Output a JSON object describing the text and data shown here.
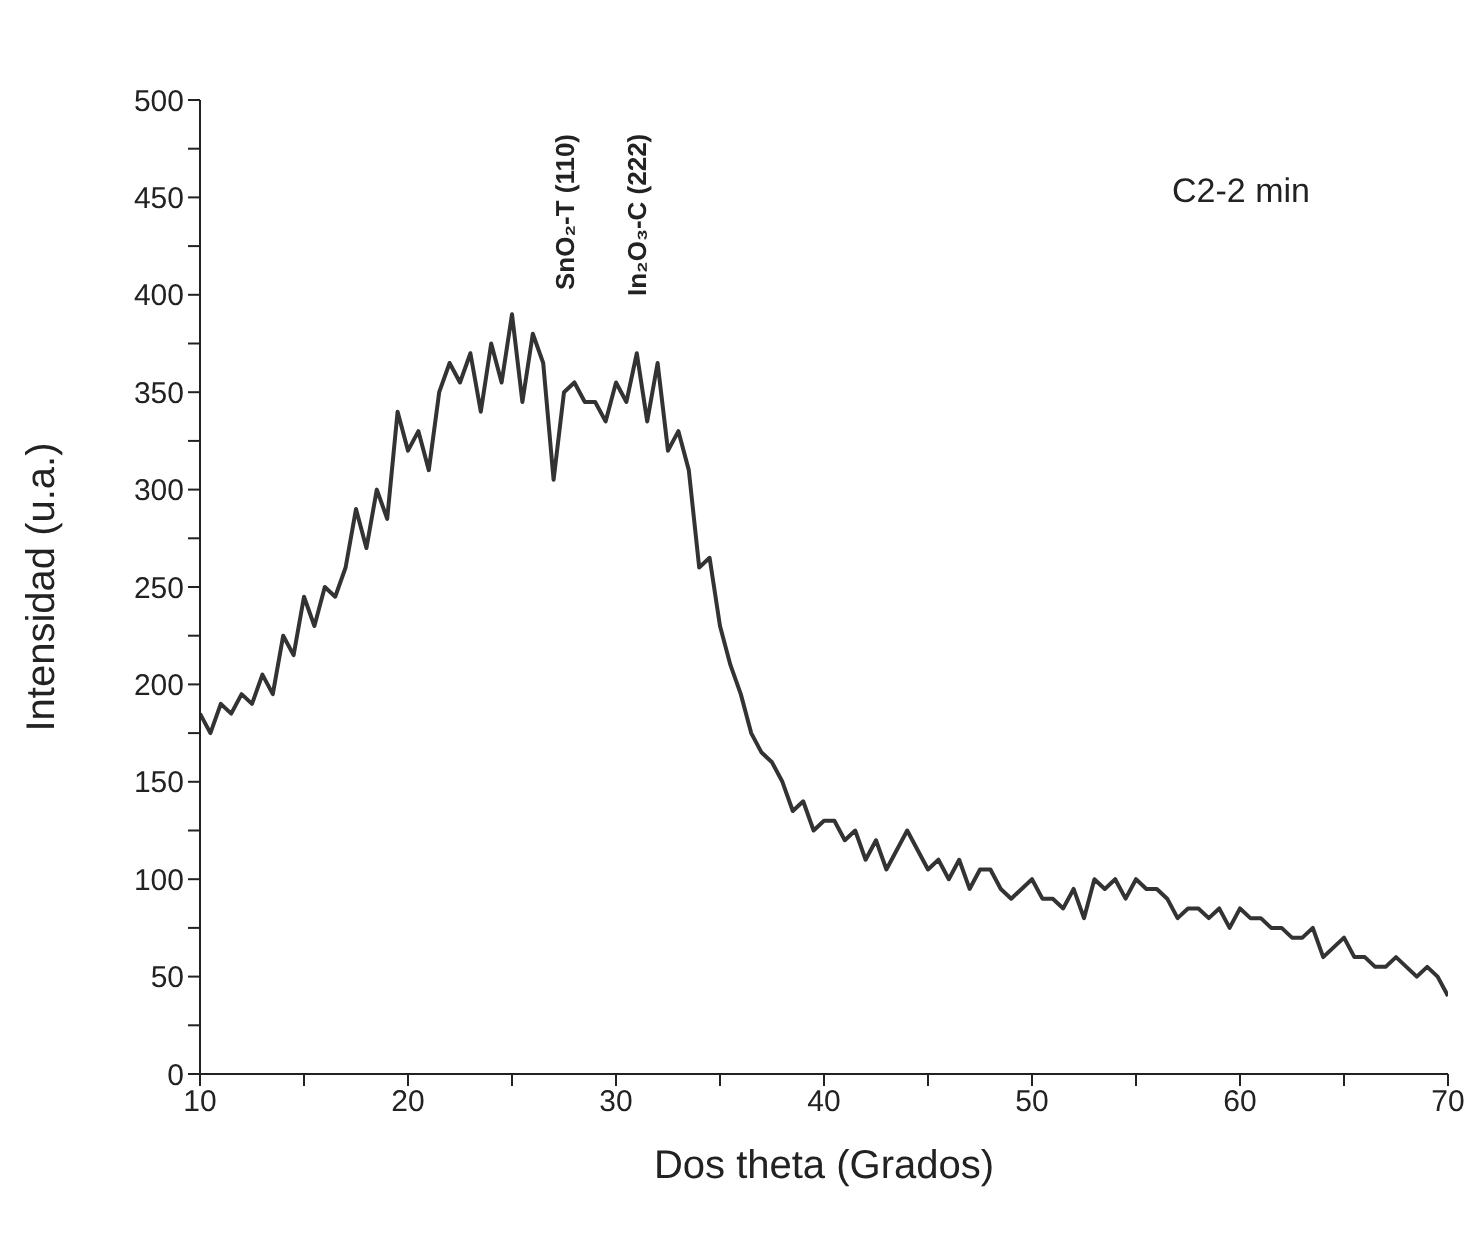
{
  "chart_data": {
    "type": "line",
    "xlabel": "Dos theta (Grados)",
    "ylabel": "Intensidad (u.a.)",
    "x": [
      10,
      10.5,
      11,
      11.5,
      12,
      12.5,
      13,
      13.5,
      14,
      14.5,
      15,
      15.5,
      16,
      16.5,
      17,
      17.5,
      18,
      18.5,
      19,
      19.5,
      20,
      20.5,
      21,
      21.5,
      22,
      22.5,
      23,
      23.5,
      24,
      24.5,
      25,
      25.5,
      26,
      26.5,
      27,
      27.5,
      28,
      28.5,
      29,
      29.5,
      30,
      30.5,
      31,
      31.5,
      32,
      32.5,
      33,
      33.5,
      34,
      34.5,
      35,
      35.5,
      36,
      36.5,
      37,
      37.5,
      38,
      38.5,
      39,
      39.5,
      40,
      40.5,
      41,
      41.5,
      42,
      42.5,
      43,
      43.5,
      44,
      44.5,
      45,
      45.5,
      46,
      46.5,
      47,
      47.5,
      48,
      48.5,
      49,
      49.5,
      50,
      50.5,
      51,
      51.5,
      52,
      52.5,
      53,
      53.5,
      54,
      54.5,
      55,
      55.5,
      56,
      56.5,
      57,
      57.5,
      58,
      58.5,
      59,
      59.5,
      60,
      60.5,
      61,
      61.5,
      62,
      62.5,
      63,
      63.5,
      64,
      64.5,
      65,
      65.5,
      66,
      66.5,
      67,
      67.5,
      68,
      68.5,
      69,
      69.5,
      70
    ],
    "series": [
      {
        "color": "#333333",
        "values": [
          185,
          175,
          190,
          185,
          195,
          190,
          205,
          195,
          225,
          215,
          245,
          230,
          250,
          245,
          260,
          290,
          270,
          300,
          285,
          340,
          320,
          330,
          310,
          350,
          365,
          355,
          370,
          340,
          375,
          355,
          390,
          345,
          380,
          365,
          305,
          350,
          355,
          345,
          345,
          335,
          355,
          345,
          370,
          335,
          365,
          320,
          330,
          310,
          260,
          265,
          230,
          210,
          195,
          175,
          165,
          160,
          150,
          135,
          140,
          125,
          130,
          130,
          120,
          125,
          110,
          120,
          105,
          115,
          125,
          115,
          105,
          110,
          100,
          110,
          95,
          105,
          105,
          95,
          90,
          95,
          100,
          90,
          90,
          85,
          95,
          80,
          100,
          95,
          100,
          90,
          100,
          95,
          95,
          90,
          80,
          85,
          85,
          80,
          85,
          75,
          85,
          80,
          80,
          75,
          75,
          70,
          70,
          75,
          60,
          65,
          70,
          60,
          60,
          55,
          55,
          60,
          55,
          50,
          55,
          50,
          40
        ]
      }
    ],
    "xlim": [
      10,
      70
    ],
    "xticks": [
      10,
      {
        "value": 15,
        "label": null
      },
      20,
      {
        "value": 25,
        "label": null
      },
      30,
      {
        "value": 35,
        "label": null
      },
      40,
      {
        "value": 45,
        "label": null
      },
      50,
      {
        "value": 55,
        "label": null
      },
      60,
      {
        "value": 65,
        "label": null
      },
      70
    ],
    "ylim": [
      0,
      500
    ],
    "yticks": [
      0,
      {
        "value": 25,
        "label": null
      },
      50,
      {
        "value": 75,
        "label": null
      },
      100,
      {
        "value": 125,
        "label": null
      },
      150,
      {
        "value": 175,
        "label": null
      },
      200,
      {
        "value": 225,
        "label": null
      },
      250,
      {
        "value": 275,
        "label": null
      },
      300,
      {
        "value": 325,
        "label": null
      },
      350,
      {
        "value": 375,
        "label": null
      },
      400,
      {
        "value": 425,
        "label": null
      },
      450,
      {
        "value": 475,
        "label": null
      },
      500
    ],
    "grid": false,
    "marker": "none",
    "line_style": "solid",
    "annotations": [
      "SnO₂-T (110)",
      "In₂O₃-C (222)",
      "C2-2 min"
    ]
  }
}
